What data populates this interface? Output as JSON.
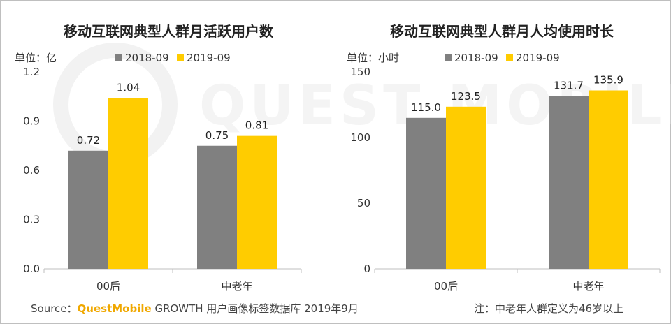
{
  "colors": {
    "s2018": "#808080",
    "s2019": "#ffcc00",
    "axis": "#bfbfbf",
    "brand": "#f0a800"
  },
  "watermark": "QUEST MOBILE",
  "chart_data": [
    {
      "type": "bar",
      "title": "移动互联网典型人群月活跃用户数",
      "unit": "单位：亿",
      "categories": [
        "00后",
        "中老年"
      ],
      "series": [
        {
          "name": "2018-09",
          "values": [
            0.72,
            0.75
          ]
        },
        {
          "name": "2019-09",
          "values": [
            1.04,
            0.81
          ]
        }
      ],
      "value_labels": [
        [
          "0.72",
          "0.75"
        ],
        [
          "1.04",
          "0.81"
        ]
      ],
      "ylim": [
        0,
        1.2
      ],
      "yticks": [
        "0.0",
        "0.3",
        "0.6",
        "0.9",
        "1.2"
      ],
      "ytick_values": [
        0,
        0.3,
        0.6,
        0.9,
        1.2
      ],
      "legend": "top",
      "grid": false
    },
    {
      "type": "bar",
      "title": "移动互联网典型人群月人均使用时长",
      "unit": "单位：小时",
      "categories": [
        "00后",
        "中老年"
      ],
      "series": [
        {
          "name": "2018-09",
          "values": [
            115.0,
            131.7
          ]
        },
        {
          "name": "2019-09",
          "values": [
            123.5,
            135.9
          ]
        }
      ],
      "value_labels": [
        [
          "115.0",
          "131.7"
        ],
        [
          "123.5",
          "135.9"
        ]
      ],
      "ylim": [
        0,
        150
      ],
      "yticks": [
        "0",
        "50",
        "100",
        "150"
      ],
      "ytick_values": [
        0,
        50,
        100,
        150
      ],
      "legend": "top",
      "grid": false
    }
  ],
  "footer": {
    "source_prefix": "Source：",
    "source_brand": "QuestMobile",
    "source_rest": " GROWTH 用户画像标签数据库  2019年9月",
    "note": "注：中老年人群定义为46岁以上"
  }
}
